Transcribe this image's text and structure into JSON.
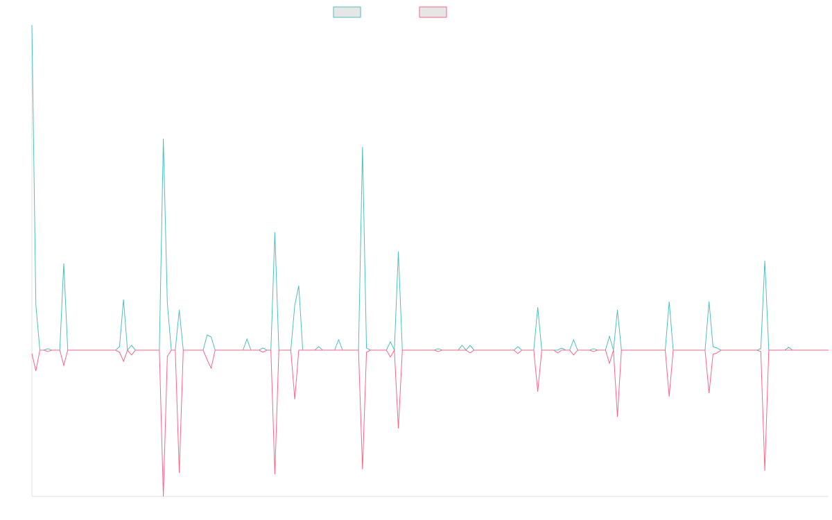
{
  "chart_data": {
    "type": "line",
    "xlim": [
      0,
      200
    ],
    "ylim": [
      -211,
      469
    ],
    "series": [
      {
        "color": "#4bc0c0",
        "values": [
          469,
          65,
          0,
          0,
          2,
          0,
          0,
          0,
          125,
          0,
          0,
          0,
          0,
          0,
          0,
          0,
          0,
          0,
          0,
          0,
          0,
          0,
          5,
          73,
          0,
          7,
          0,
          0,
          0,
          0,
          0,
          0,
          0,
          305,
          68,
          0,
          0,
          58,
          0,
          0,
          0,
          0,
          0,
          0,
          22,
          19,
          0,
          0,
          0,
          0,
          0,
          0,
          0,
          0,
          16,
          0,
          0,
          0,
          3,
          0,
          0,
          170,
          0,
          0,
          0,
          0,
          65,
          93,
          0,
          0,
          0,
          0,
          5,
          0,
          0,
          0,
          0,
          15,
          0,
          0,
          0,
          0,
          0,
          293,
          3,
          0,
          0,
          0,
          0,
          0,
          12,
          0,
          142,
          0,
          0,
          0,
          0,
          0,
          0,
          0,
          0,
          0,
          2,
          0,
          0,
          0,
          0,
          0,
          7,
          0,
          7,
          0,
          0,
          0,
          0,
          0,
          0,
          0,
          0,
          0,
          0,
          0,
          5,
          0,
          0,
          0,
          0,
          62,
          0,
          0,
          0,
          0,
          0,
          3,
          0,
          0,
          15,
          0,
          0,
          0,
          0,
          2,
          0,
          0,
          0,
          20,
          0,
          58,
          0,
          0,
          0,
          0,
          0,
          0,
          0,
          0,
          0,
          0,
          0,
          0,
          70,
          0,
          0,
          0,
          0,
          0,
          0,
          0,
          0,
          0,
          70,
          5,
          3,
          0,
          0,
          0,
          0,
          0,
          0,
          0,
          0,
          0,
          0,
          2,
          129,
          0,
          0,
          0,
          0,
          0,
          4,
          0,
          0,
          0,
          0,
          0,
          0,
          0,
          0,
          0,
          0
        ]
      },
      {
        "color": "#ff6384",
        "values": [
          -5,
          -30,
          0,
          0,
          -2,
          0,
          0,
          0,
          -22,
          0,
          0,
          0,
          0,
          0,
          0,
          0,
          0,
          0,
          0,
          0,
          0,
          0,
          -3,
          -16,
          0,
          -7,
          0,
          0,
          0,
          0,
          0,
          0,
          0,
          -211,
          -9,
          0,
          0,
          -177,
          0,
          0,
          0,
          0,
          0,
          0,
          -14,
          -26,
          0,
          0,
          0,
          0,
          0,
          0,
          0,
          0,
          0,
          0,
          0,
          0,
          -3,
          0,
          0,
          -179,
          0,
          0,
          0,
          0,
          -71,
          0,
          0,
          0,
          0,
          0,
          0,
          0,
          0,
          0,
          0,
          0,
          0,
          0,
          0,
          0,
          0,
          -172,
          -3,
          0,
          0,
          0,
          0,
          0,
          -10,
          0,
          -113,
          0,
          0,
          0,
          0,
          0,
          0,
          0,
          0,
          0,
          -2,
          0,
          0,
          0,
          0,
          0,
          0,
          0,
          -4,
          0,
          0,
          0,
          0,
          0,
          0,
          0,
          0,
          0,
          0,
          0,
          -5,
          0,
          0,
          0,
          0,
          -60,
          0,
          0,
          0,
          0,
          -4,
          0,
          0,
          0,
          -7,
          0,
          0,
          0,
          0,
          -2,
          0,
          0,
          0,
          -19,
          0,
          -96,
          0,
          0,
          0,
          0,
          0,
          0,
          0,
          0,
          0,
          0,
          0,
          0,
          -67,
          0,
          0,
          0,
          0,
          0,
          0,
          0,
          0,
          0,
          -62,
          -6,
          -4,
          0,
          0,
          0,
          0,
          0,
          0,
          0,
          0,
          0,
          0,
          -2,
          -174,
          0,
          0,
          0,
          0,
          0,
          0,
          0,
          0,
          0,
          0,
          0,
          0,
          0,
          0,
          0,
          0
        ]
      }
    ]
  }
}
